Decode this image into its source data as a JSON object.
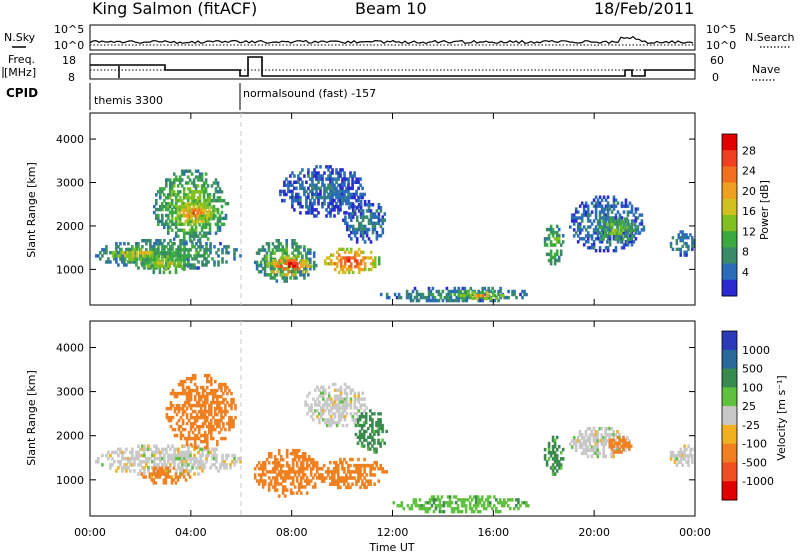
{
  "header": {
    "station": "King Salmon (fitACF)",
    "beam": "Beam 10",
    "date": "18/Feb/2011"
  },
  "top_panels": {
    "nsky_label": "N.Sky",
    "nsearch_label": "N.Search",
    "noise_ticks": [
      "10^5",
      "10^0"
    ],
    "freq_label_1": "Freq.",
    "freq_label_2": "[MHz]",
    "freq_ticks": [
      "18",
      "8"
    ],
    "nave_label": "Nave",
    "nave_ticks": [
      "60",
      "0"
    ],
    "cpid_label": "CPID",
    "cpid_segments": [
      "themis 3300",
      "normalsound (fast) -157"
    ]
  },
  "colors": {
    "power_scale": [
      "#2a2ad0",
      "#2a6cb8",
      "#3a8a6a",
      "#3aaa40",
      "#80c020",
      "#d0c020",
      "#f0a020",
      "#f07020",
      "#f04020",
      "#e00000"
    ],
    "velocity_scale": [
      "#2a3ab8",
      "#2a6a98",
      "#3a8a50",
      "#60c040",
      "#c8c8c8",
      "#f0b020",
      "#f08020",
      "#f05020",
      "#e00000"
    ]
  },
  "chart_data": [
    {
      "type": "heatmap",
      "name": "power",
      "xlabel": "Time UT",
      "ylabel": "Slant Range [km]",
      "x_ticks": [
        "00:00",
        "04:00",
        "08:00",
        "12:00",
        "16:00",
        "20:00",
        "00:00"
      ],
      "y_ticks": [
        "1000",
        "2000",
        "3000",
        "4000"
      ],
      "xlim": [
        0,
        24
      ],
      "ylim": [
        180,
        4600
      ],
      "colorbar": {
        "label": "Power [dB]",
        "ticks": [
          "28",
          "24",
          "20",
          "16",
          "12",
          "8",
          "4"
        ],
        "range": [
          0,
          30
        ]
      },
      "regions": [
        {
          "t": [
            0.2,
            6.0
          ],
          "r": [
            1000,
            1700
          ],
          "v": 10
        },
        {
          "t": [
            0.8,
            3.0
          ],
          "r": [
            1200,
            1500
          ],
          "v": 17
        },
        {
          "t": [
            2.5,
            5.5
          ],
          "r": [
            1600,
            3300
          ],
          "v": 13
        },
        {
          "t": [
            3.2,
            5.0
          ],
          "r": [
            2000,
            2600
          ],
          "v": 20
        },
        {
          "t": [
            2.0,
            4.0
          ],
          "r": [
            900,
            1400
          ],
          "v": 15
        },
        {
          "t": [
            6.5,
            9.0
          ],
          "r": [
            700,
            1700
          ],
          "v": 12
        },
        {
          "t": [
            7.0,
            8.8
          ],
          "r": [
            850,
            1300
          ],
          "v": 26
        },
        {
          "t": [
            9.2,
            11.5
          ],
          "r": [
            900,
            1500
          ],
          "v": 24
        },
        {
          "t": [
            7.5,
            11.0
          ],
          "r": [
            2200,
            3400
          ],
          "v": 5
        },
        {
          "t": [
            10.0,
            11.8
          ],
          "r": [
            1600,
            2600
          ],
          "v": 6
        },
        {
          "t": [
            11.5,
            17.5
          ],
          "r": [
            250,
            600
          ],
          "v": 8
        },
        {
          "t": [
            14.5,
            16.5
          ],
          "r": [
            300,
            500
          ],
          "v": 18
        },
        {
          "t": [
            18.0,
            18.8
          ],
          "r": [
            1100,
            2100
          ],
          "v": 12
        },
        {
          "t": [
            19.0,
            22.0
          ],
          "r": [
            1400,
            2700
          ],
          "v": 6
        },
        {
          "t": [
            20.0,
            21.8
          ],
          "r": [
            1600,
            2200
          ],
          "v": 13
        },
        {
          "t": [
            23.0,
            24.0
          ],
          "r": [
            1300,
            1900
          ],
          "v": 7
        }
      ]
    },
    {
      "type": "heatmap",
      "name": "velocity",
      "xlabel": "Time UT",
      "ylabel": "Slant Range [km]",
      "x_ticks": [
        "00:00",
        "04:00",
        "08:00",
        "12:00",
        "16:00",
        "20:00",
        "00:00"
      ],
      "y_ticks": [
        "1000",
        "2000",
        "3000",
        "4000"
      ],
      "xlim": [
        0,
        24
      ],
      "ylim": [
        180,
        4600
      ],
      "colorbar": {
        "label": "Velocity [m s⁻¹]",
        "ticks": [
          "1000",
          "500",
          "100",
          "25",
          "-25",
          "-100",
          "-500",
          "-1000"
        ],
        "range": [
          -1000,
          1000
        ]
      },
      "regions": [
        {
          "t": [
            0.2,
            6.0
          ],
          "r": [
            1100,
            1800
          ],
          "v": 0
        },
        {
          "t": [
            3.0,
            5.8
          ],
          "r": [
            1700,
            3400
          ],
          "v": -300
        },
        {
          "t": [
            2.0,
            4.0
          ],
          "r": [
            900,
            1300
          ],
          "v": -150
        },
        {
          "t": [
            6.5,
            9.2
          ],
          "r": [
            600,
            1700
          ],
          "v": -300
        },
        {
          "t": [
            9.0,
            11.8
          ],
          "r": [
            800,
            1500
          ],
          "v": -250
        },
        {
          "t": [
            8.5,
            11.0
          ],
          "r": [
            2200,
            3200
          ],
          "v": 0
        },
        {
          "t": [
            10.5,
            11.8
          ],
          "r": [
            1600,
            2600
          ],
          "v": 150
        },
        {
          "t": [
            12.0,
            17.5
          ],
          "r": [
            250,
            650
          ],
          "v": 80
        },
        {
          "t": [
            18.0,
            18.8
          ],
          "r": [
            1100,
            2000
          ],
          "v": 120
        },
        {
          "t": [
            19.0,
            21.5
          ],
          "r": [
            1500,
            2200
          ],
          "v": 0
        },
        {
          "t": [
            20.5,
            21.5
          ],
          "r": [
            1600,
            2000
          ],
          "v": -200
        },
        {
          "t": [
            23.0,
            24.0
          ],
          "r": [
            1300,
            1800
          ],
          "v": 0
        }
      ]
    }
  ]
}
